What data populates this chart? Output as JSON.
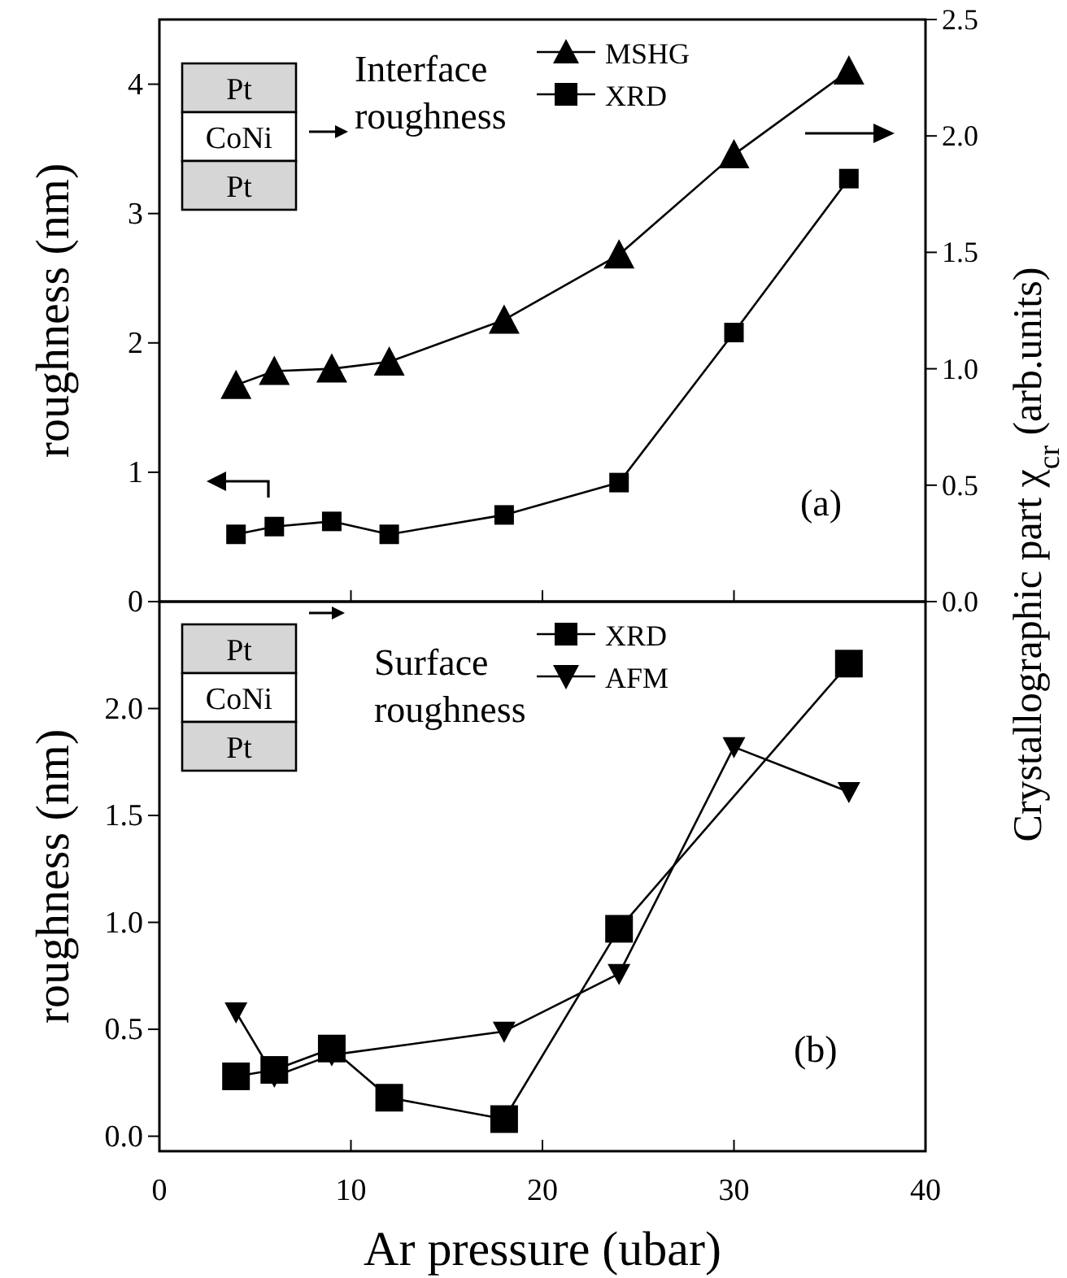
{
  "chart_data": [
    {
      "type": "line",
      "ylabel": "roughness (nm)",
      "y2label": "Crystallographic part χ$_{cr}$ (arb.units)",
      "xlim": [
        0,
        40
      ],
      "xticks": [
        0,
        10,
        20,
        30,
        40
      ],
      "ylim": [
        0,
        4.5
      ],
      "yticks": [
        0,
        1,
        2,
        3,
        4
      ],
      "y2lim": [
        0,
        2.5
      ],
      "y2ticks": [
        {
          "value": 0,
          "label": "0.0"
        },
        {
          "value": 0.5,
          "label": "0.5"
        },
        {
          "value": 1,
          "label": "1.0"
        },
        {
          "value": 1.5,
          "label": "1.5"
        },
        {
          "value": 2,
          "label": "2.0"
        },
        {
          "value": 2.5,
          "label": "2.5"
        }
      ],
      "tick_labels": "y",
      "legend": "top",
      "annotations": [
        "Pt",
        "CoNi",
        "Pt",
        "Interface\nroughness",
        "(a)"
      ],
      "series": [
        {
          "name": "MSHG",
          "color": "#000000",
          "marker": "triangle",
          "axis": "y2",
          "x": [
            4,
            6,
            9,
            12,
            18,
            24,
            30,
            36
          ],
          "values": [
            0.93,
            0.99,
            1.0,
            1.03,
            1.21,
            1.49,
            1.92,
            2.28
          ]
        },
        {
          "name": "XRD",
          "color": "#000000",
          "marker": "square",
          "x": [
            4,
            6,
            9,
            12,
            18,
            24,
            30,
            36
          ],
          "values": [
            0.52,
            0.58,
            0.62,
            0.52,
            0.67,
            0.92,
            2.08,
            3.27
          ]
        }
      ]
    },
    {
      "type": "line",
      "xlabel": "Ar pressure (ubar)",
      "ylabel": "roughness (nm)",
      "xlim": [
        0,
        40
      ],
      "xticks": [
        0,
        10,
        20,
        30,
        40
      ],
      "ylim": [
        -0.07,
        2.5
      ],
      "yticks": [
        {
          "value": 0,
          "label": "0.0"
        },
        {
          "value": 0.5,
          "label": "0.5"
        },
        {
          "value": 1,
          "label": "1.0"
        },
        {
          "value": 1.5,
          "label": "1.5"
        },
        {
          "value": 2,
          "label": "2.0"
        }
      ],
      "legend": "top",
      "annotations": [
        "Pt",
        "CoNi",
        "Pt",
        "Surface\nroughness",
        "(b)"
      ],
      "series": [
        {
          "name": "XRD",
          "color": "#000000",
          "marker": "square",
          "x": [
            4,
            6,
            9,
            12,
            18,
            24,
            36
          ],
          "values": [
            0.28,
            0.31,
            0.41,
            0.18,
            0.08,
            0.97,
            2.21
          ]
        },
        {
          "name": "AFM",
          "color": "#000000",
          "marker": "triangle-down",
          "x": [
            4,
            6,
            9,
            18,
            24,
            30,
            36
          ],
          "values": [
            0.58,
            0.28,
            0.38,
            0.49,
            0.76,
            1.82,
            1.61
          ]
        }
      ]
    }
  ]
}
